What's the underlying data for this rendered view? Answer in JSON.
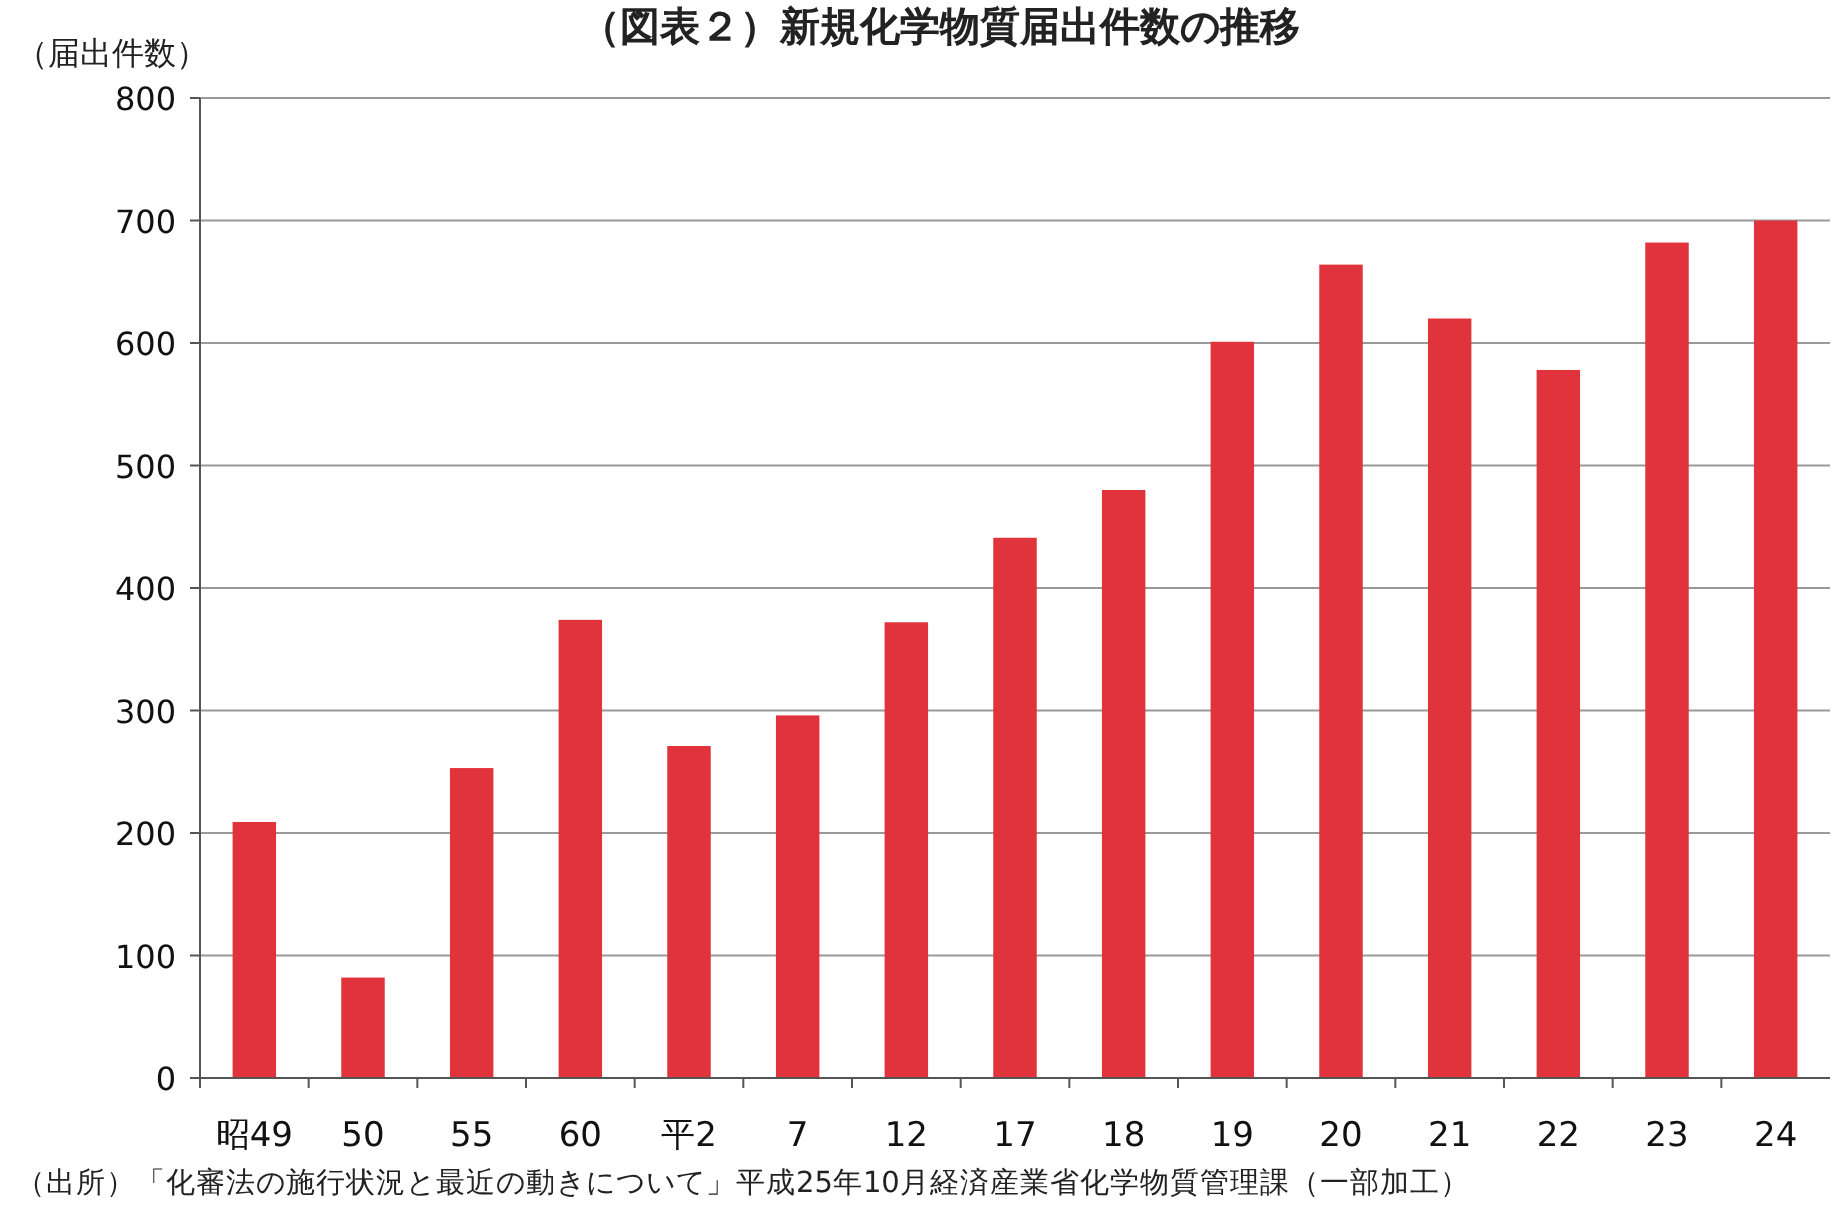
{
  "chart_data": {
    "type": "bar",
    "title": "（図表２）新規化学物質届出件数の推移",
    "ylabel": "（届出件数）",
    "categories": [
      "昭49",
      "50",
      "55",
      "60",
      "平2",
      "7",
      "12",
      "17",
      "18",
      "19",
      "20",
      "21",
      "22",
      "23",
      "24"
    ],
    "values": [
      209,
      82,
      253,
      374,
      271,
      296,
      372,
      441,
      480,
      601,
      664,
      620,
      578,
      682,
      700
    ],
    "color": "#e0333c",
    "ylim": [
      0,
      800
    ],
    "yticks": [
      0,
      100,
      200,
      300,
      400,
      500,
      600,
      700,
      800
    ],
    "grid": "y",
    "annotations": [
      "（出所）「化審法の施行状況と最近の動きについて」平成25年10月経済産業省化学物質管理課（一部加工）"
    ]
  }
}
